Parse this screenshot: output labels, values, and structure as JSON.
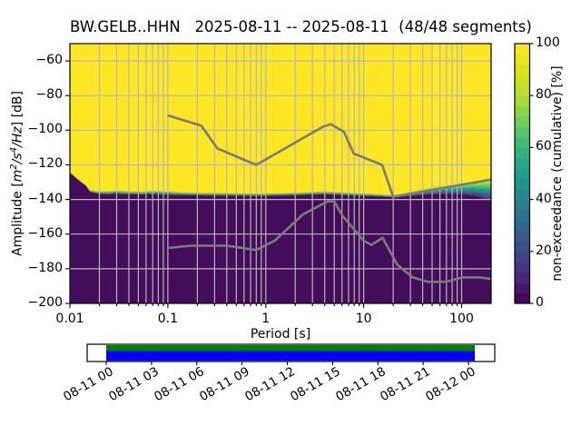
{
  "chart_data": {
    "type": "heatmap",
    "title": "BW.GELB..HHN   2025-08-11 -- 2025-08-11  (48/48 segments)",
    "station": "BW.GELB..HHN",
    "date_start": "2025-08-11",
    "date_end": "2025-08-11",
    "segments_used": 48,
    "segments_total": 48,
    "xlabel": "Period [s]",
    "ylabel": "Amplitude [m²/s⁴/Hz] [dB]",
    "ylabel_rich": [
      {
        "text": "Amplitude [",
        "italic": false,
        "sup": false
      },
      {
        "text": "m",
        "italic": true,
        "sup": false
      },
      {
        "text": "2",
        "italic": true,
        "sup": true
      },
      {
        "text": "/",
        "italic": true,
        "sup": false
      },
      {
        "text": "s",
        "italic": true,
        "sup": false
      },
      {
        "text": "4",
        "italic": true,
        "sup": true
      },
      {
        "text": "/",
        "italic": true,
        "sup": false
      },
      {
        "text": "Hz",
        "italic": true,
        "sup": false
      },
      {
        "text": "] [dB]",
        "italic": false,
        "sup": false
      }
    ],
    "x_scale": "log",
    "xlim": [
      0.01,
      200
    ],
    "ylim": [
      -200,
      -50
    ],
    "grid": true,
    "x_ticks": [
      0.01,
      0.1,
      1,
      10,
      100
    ],
    "x_tick_labels": [
      "0.01",
      "0.1",
      "1",
      "10",
      "100"
    ],
    "y_ticks": [
      -60,
      -80,
      -100,
      -120,
      -140,
      -160,
      -180,
      -200
    ],
    "y_tick_labels": [
      "−60",
      "−80",
      "−100",
      "−120",
      "−140",
      "−160",
      "−180",
      "−200"
    ],
    "colormap": "viridis",
    "colorbar": {
      "label": "non-exceedance (cumulative) [%]",
      "ticks": [
        0,
        20,
        40,
        60,
        80,
        100
      ],
      "tick_labels": [
        "0",
        "20",
        "40",
        "60",
        "80",
        "100"
      ],
      "n_levels": 25,
      "stops": [
        "#440154",
        "#482878",
        "#3e4a89",
        "#31688e",
        "#26828e",
        "#1f9e89",
        "#35b779",
        "#6ece58",
        "#b5de2b",
        "#dce319",
        "#fde725"
      ]
    },
    "field": {
      "description": "cumulative non-exceedance percentage: yellow = 100% above boundary, dark purple = 0% below boundary, thin viridis gradient band between",
      "high_color": "#fde725",
      "low_color": "#440d5c",
      "band_colors": [
        "#d2e21b",
        "#9fda3a",
        "#63cb5f",
        "#2fb47c",
        "#21918c",
        "#2a788e",
        "#39568c",
        "#453781"
      ],
      "periods": [
        0.01,
        0.0115,
        0.013,
        0.0145,
        0.016,
        0.02,
        0.025,
        0.03,
        0.04,
        0.055,
        0.07,
        0.1,
        0.14,
        0.2,
        0.3,
        0.5,
        0.7,
        1,
        1.5,
        2.2,
        3,
        4,
        5,
        7,
        10,
        14,
        20,
        26,
        35,
        50,
        70,
        100,
        140,
        200
      ],
      "top_db": [
        -124,
        -127,
        -129.5,
        -131.5,
        -134.5,
        -135.2,
        -135.0,
        -134.7,
        -135.2,
        -135.4,
        -134.8,
        -135.2,
        -135.7,
        -135.9,
        -136.1,
        -136.3,
        -136.4,
        -136.4,
        -136.2,
        -135.9,
        -135.5,
        -135.3,
        -135.5,
        -136.0,
        -136.4,
        -136.8,
        -137.4,
        -136.2,
        -134.6,
        -132.8,
        -131.6,
        -130.4,
        -129.3,
        -128.2
      ],
      "bottom_db": [
        -124.6,
        -127.6,
        -130.1,
        -132.1,
        -135.6,
        -136.8,
        -136.9,
        -136.8,
        -137.0,
        -137.1,
        -136.9,
        -137.3,
        -137.5,
        -137.6,
        -137.7,
        -137.8,
        -137.9,
        -137.9,
        -137.7,
        -137.5,
        -137.2,
        -137.0,
        -137.2,
        -137.6,
        -137.9,
        -138.2,
        -138.7,
        -138.2,
        -137.6,
        -137.0,
        -136.8,
        -136.9,
        -138.0,
        -140.4
      ]
    },
    "noise_models": {
      "color": "#7b7b7b",
      "nhnm": [
        [
          0.1,
          -91.5
        ],
        [
          0.22,
          -97.4
        ],
        [
          0.32,
          -110.5
        ],
        [
          0.8,
          -120.0
        ],
        [
          3.8,
          -98.1
        ],
        [
          4.6,
          -96.5
        ],
        [
          6.3,
          -101.0
        ],
        [
          7.9,
          -113.5
        ],
        [
          15.4,
          -120.0
        ],
        [
          20,
          -138.5
        ],
        [
          200,
          -128.5
        ]
      ],
      "nlnm": [
        [
          0.1,
          -168.0
        ],
        [
          0.17,
          -166.7
        ],
        [
          0.4,
          -166.7
        ],
        [
          0.8,
          -169.2
        ],
        [
          1.24,
          -163.7
        ],
        [
          2.4,
          -148.6
        ],
        [
          4.3,
          -141.1
        ],
        [
          5,
          -141.1
        ],
        [
          6,
          -149.0
        ],
        [
          10,
          -163.8
        ],
        [
          12,
          -166.2
        ],
        [
          15.6,
          -162.1
        ],
        [
          21.9,
          -177.5
        ],
        [
          31.6,
          -185.0
        ],
        [
          45,
          -187.5
        ],
        [
          70,
          -187.5
        ],
        [
          101,
          -185.0
        ],
        [
          154,
          -185.0
        ],
        [
          200,
          -185.9
        ]
      ]
    },
    "timeline": {
      "tick_labels": [
        "08-11 00",
        "08-11 03",
        "08-11 06",
        "08-11 09",
        "08-11 12",
        "08-11 15",
        "08-11 18",
        "08-11 21",
        "08-12 00"
      ],
      "fill_top_color": "#008000",
      "fill_bottom_color": "#0000ff"
    },
    "grid_color": "#b6b6b6"
  }
}
